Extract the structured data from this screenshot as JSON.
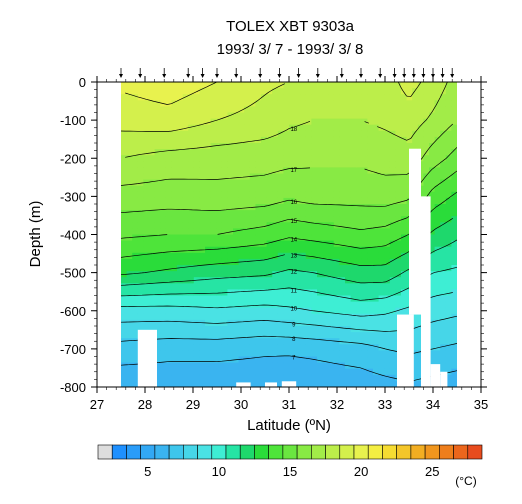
{
  "chart_data": {
    "type": "heatmap",
    "title": "TOLEX XBT 9303a",
    "subtitle": "1993/ 3/ 7 - 1993/ 3/ 8",
    "xlabel": "Latitude (ºN)",
    "ylabel": "Depth (m)",
    "xlim": [
      27,
      35
    ],
    "ylim": [
      -800,
      0
    ],
    "x_ticks": [
      "27",
      "28",
      "29",
      "30",
      "31",
      "32",
      "33",
      "34",
      "35"
    ],
    "y_ticks": [
      "0",
      "-100",
      "-200",
      "-300",
      "-400",
      "-500",
      "-600",
      "-700",
      "-800"
    ],
    "station_latitudes": [
      27.5,
      27.9,
      28.4,
      28.9,
      29.2,
      29.5,
      29.9,
      30.4,
      30.8,
      31.2,
      31.6,
      32.1,
      32.5,
      32.9,
      33.2,
      33.4,
      33.6,
      33.8,
      34.0,
      34.2,
      34.4
    ],
    "temperature_section": {
      "unit": "°C",
      "note_depths": [
        0,
        -100,
        -200,
        -300,
        -400,
        -500,
        -600,
        -700,
        -800
      ],
      "latitudes": [
        27.5,
        28.5,
        29.5,
        30.5,
        31.0,
        31.5,
        32.5,
        33.0,
        33.5,
        34.0,
        34.5
      ],
      "values": [
        [
          20.2,
          20.6,
          20.0,
          19.2,
          19.0,
          19.0,
          18.8,
          18.5,
          19.4,
          18.6,
          17.6
        ],
        [
          19.4,
          19.6,
          19.0,
          18.6,
          18.2,
          18.0,
          18.0,
          18.2,
          18.5,
          17.8,
          17.0
        ],
        [
          18.0,
          17.6,
          17.5,
          17.4,
          17.3,
          17.2,
          17.2,
          17.4,
          17.6,
          16.5,
          15.6
        ],
        [
          16.6,
          16.5,
          16.6,
          16.5,
          16.2,
          16.4,
          16.4,
          16.5,
          16.2,
          14.6,
          13.8
        ],
        [
          15.2,
          15.0,
          15.0,
          14.6,
          14.2,
          14.4,
          14.8,
          14.6,
          14.0,
          12.8,
          12.2
        ],
        [
          13.2,
          12.8,
          12.4,
          12.2,
          11.8,
          12.0,
          12.6,
          12.6,
          11.8,
          11.0,
          10.8
        ],
        [
          9.6,
          9.6,
          9.8,
          9.6,
          9.8,
          10.0,
          10.4,
          10.2,
          9.8,
          9.4,
          9.2
        ],
        [
          7.6,
          7.4,
          7.4,
          7.2,
          7.2,
          7.3,
          7.6,
          8.0,
          8.2,
          8.0,
          7.8
        ],
        [
          6.2,
          6.2,
          6.2,
          6.2,
          6.1,
          6.2,
          6.4,
          6.6,
          6.8,
          6.6,
          6.4
        ]
      ]
    },
    "contour_labels": [
      "18",
      "17",
      "16",
      "15",
      "14",
      "13",
      "12",
      "11",
      "10",
      "9",
      "8",
      "7"
    ],
    "colorbar": {
      "tick_labels": [
        "5",
        "10",
        "15",
        "20",
        "25"
      ],
      "unit_label": "(°C)",
      "levels": [
        1,
        3,
        4,
        5,
        6,
        7,
        8,
        9,
        10,
        11,
        12,
        13,
        14,
        15,
        16,
        17,
        18,
        19,
        20,
        21,
        22,
        23,
        24,
        25,
        26,
        27,
        28
      ],
      "colors": [
        "#dddddd",
        "#1e90ff",
        "#2a9cf8",
        "#32a8f4",
        "#3ab4f0",
        "#3ec6ec",
        "#46d6e8",
        "#4ae2e4",
        "#3eeed4",
        "#26e4a4",
        "#1ed86c",
        "#2adc3a",
        "#4ee43a",
        "#6ae640",
        "#88ea44",
        "#a2ec48",
        "#bcee4a",
        "#d4f04c",
        "#e8f24e",
        "#f4ee42",
        "#f6dc32",
        "#f4c62a",
        "#f2ae22",
        "#f0961e",
        "#ee7e1c",
        "#ec661c",
        "#e84c1e"
      ]
    }
  }
}
